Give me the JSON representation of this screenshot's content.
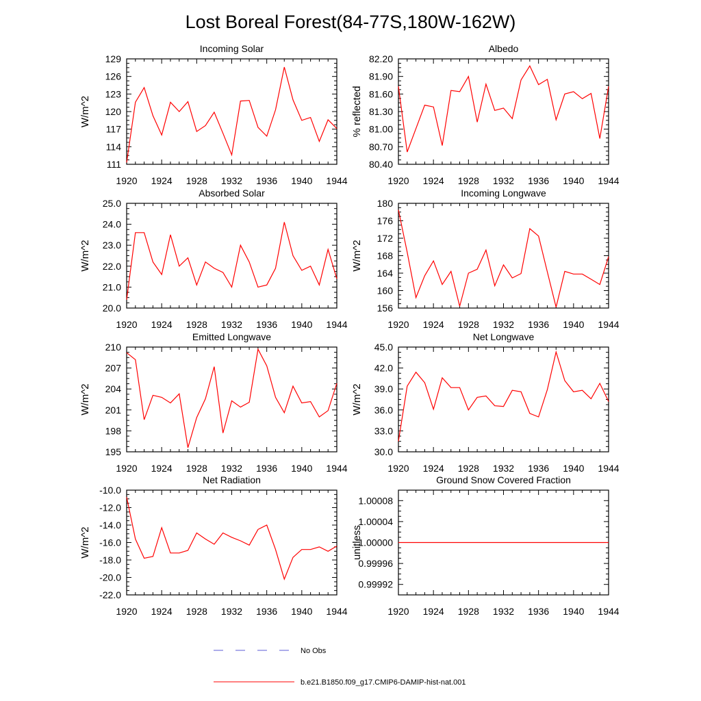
{
  "figure": {
    "title": "Lost Boreal Forest(84-77S,180W-162W)",
    "legend": [
      {
        "label": "No Obs",
        "style": "dashed",
        "color": "#5b5bd6"
      },
      {
        "label": "b.e21.B1850.f09_g17.CMIP6-DAMIP-hist-nat.001",
        "style": "solid",
        "color": "#ff0000"
      }
    ]
  },
  "chart_data": [
    {
      "type": "line",
      "title": "Incoming Solar",
      "xlabel": "",
      "ylabel": "W/m^2",
      "xlim": [
        1920,
        1944
      ],
      "ylim": [
        111,
        129
      ],
      "xticks": [
        "1920",
        "1924",
        "1928",
        "1932",
        "1936",
        "1940",
        "1944"
      ],
      "yticks": [
        "111",
        "114",
        "117",
        "120",
        "123",
        "126",
        "129"
      ],
      "series": [
        {
          "color": "#ff0000",
          "x": [
            1920,
            1921,
            1922,
            1923,
            1924,
            1925,
            1926,
            1927,
            1928,
            1929,
            1930,
            1931,
            1932,
            1933,
            1934,
            1935,
            1936,
            1937,
            1938,
            1939,
            1940,
            1941,
            1942,
            1943,
            1944
          ],
          "values": [
            111.3,
            121.6,
            124.1,
            119.3,
            116.0,
            121.6,
            120.0,
            121.7,
            116.6,
            117.6,
            119.9,
            116.3,
            112.6,
            121.8,
            121.9,
            117.3,
            115.8,
            120.3,
            127.6,
            122.0,
            118.5,
            119.0,
            114.9,
            118.6,
            117.1
          ]
        }
      ]
    },
    {
      "type": "line",
      "title": "Albedo",
      "xlabel": "",
      "ylabel": "% reflected",
      "xlim": [
        1920,
        1944
      ],
      "ylim": [
        80.4,
        82.2
      ],
      "xticks": [
        "1920",
        "1924",
        "1928",
        "1932",
        "1936",
        "1940",
        "1944"
      ],
      "yticks": [
        "80.40",
        "80.70",
        "81.00",
        "81.30",
        "81.60",
        "81.90",
        "82.20"
      ],
      "series": [
        {
          "color": "#ff0000",
          "x": [
            1920,
            1921,
            1922,
            1923,
            1924,
            1925,
            1926,
            1927,
            1928,
            1929,
            1930,
            1931,
            1932,
            1933,
            1934,
            1935,
            1936,
            1937,
            1938,
            1939,
            1940,
            1941,
            1942,
            1943,
            1944
          ],
          "values": [
            81.73,
            80.61,
            81.01,
            81.41,
            81.38,
            80.72,
            81.66,
            81.64,
            81.9,
            81.12,
            81.77,
            81.32,
            81.36,
            81.18,
            81.84,
            82.08,
            81.76,
            81.85,
            81.16,
            81.6,
            81.64,
            81.52,
            81.61,
            80.84,
            81.73
          ]
        }
      ]
    },
    {
      "type": "line",
      "title": "Absorbed Solar",
      "xlabel": "",
      "ylabel": "W/m^2",
      "xlim": [
        1920,
        1944
      ],
      "ylim": [
        20.0,
        25.0
      ],
      "xticks": [
        "1920",
        "1924",
        "1928",
        "1932",
        "1936",
        "1940",
        "1944"
      ],
      "yticks": [
        "20.0",
        "21.0",
        "22.0",
        "23.0",
        "24.0",
        "25.0"
      ],
      "series": [
        {
          "color": "#ff0000",
          "x": [
            1920,
            1921,
            1922,
            1923,
            1924,
            1925,
            1926,
            1927,
            1928,
            1929,
            1930,
            1931,
            1932,
            1933,
            1934,
            1935,
            1936,
            1937,
            1938,
            1939,
            1940,
            1941,
            1942,
            1943,
            1944
          ],
          "values": [
            20.4,
            23.6,
            23.6,
            22.2,
            21.6,
            23.5,
            22.0,
            22.4,
            21.1,
            22.2,
            21.9,
            21.7,
            21.0,
            23.0,
            22.2,
            21.0,
            21.1,
            21.9,
            24.1,
            22.5,
            21.8,
            22.0,
            21.1,
            22.8,
            21.4
          ]
        }
      ]
    },
    {
      "type": "line",
      "title": "Incoming Longwave",
      "xlabel": "",
      "ylabel": "W/m^2",
      "xlim": [
        1920,
        1944
      ],
      "ylim": [
        156,
        180
      ],
      "xticks": [
        "1920",
        "1924",
        "1928",
        "1932",
        "1936",
        "1940",
        "1944"
      ],
      "yticks": [
        "156",
        "160",
        "164",
        "168",
        "172",
        "176",
        "180"
      ],
      "series": [
        {
          "color": "#ff0000",
          "x": [
            1920,
            1921,
            1922,
            1923,
            1924,
            1925,
            1926,
            1927,
            1928,
            1929,
            1930,
            1931,
            1932,
            1933,
            1934,
            1935,
            1936,
            1937,
            1938,
            1939,
            1940,
            1941,
            1942,
            1943,
            1944
          ],
          "values": [
            178.5,
            168.8,
            158.4,
            163.4,
            166.8,
            161.4,
            164.4,
            156.4,
            164.0,
            164.9,
            169.3,
            161.1,
            165.9,
            162.9,
            163.9,
            174.2,
            172.5,
            164.3,
            156.2,
            164.4,
            163.8,
            163.8,
            162.6,
            161.4,
            167.8
          ]
        }
      ]
    },
    {
      "type": "line",
      "title": "Emitted Longwave",
      "xlabel": "",
      "ylabel": "W/m^2",
      "xlim": [
        1920,
        1944
      ],
      "ylim": [
        195,
        210
      ],
      "xticks": [
        "1920",
        "1924",
        "1928",
        "1932",
        "1936",
        "1940",
        "1944"
      ],
      "yticks": [
        "195",
        "198",
        "201",
        "204",
        "207",
        "210"
      ],
      "series": [
        {
          "color": "#ff0000",
          "x": [
            1920,
            1921,
            1922,
            1923,
            1924,
            1925,
            1926,
            1927,
            1928,
            1929,
            1930,
            1931,
            1932,
            1933,
            1934,
            1935,
            1936,
            1937,
            1938,
            1939,
            1940,
            1941,
            1942,
            1943,
            1944
          ],
          "values": [
            209.2,
            208.2,
            199.6,
            203.1,
            202.8,
            202.0,
            203.3,
            195.6,
            199.9,
            202.6,
            207.2,
            197.7,
            202.3,
            201.4,
            202.1,
            209.7,
            207.3,
            202.8,
            200.6,
            204.4,
            202.0,
            202.2,
            200.0,
            200.9,
            204.8
          ]
        }
      ]
    },
    {
      "type": "line",
      "title": "Net Longwave",
      "xlabel": "",
      "ylabel": "W/m^2",
      "xlim": [
        1920,
        1944
      ],
      "ylim": [
        30.0,
        45.0
      ],
      "xticks": [
        "1920",
        "1924",
        "1928",
        "1932",
        "1936",
        "1940",
        "1944"
      ],
      "yticks": [
        "30.0",
        "33.0",
        "36.0",
        "39.0",
        "42.0",
        "45.0"
      ],
      "series": [
        {
          "color": "#ff0000",
          "x": [
            1920,
            1921,
            1922,
            1923,
            1924,
            1925,
            1926,
            1927,
            1928,
            1929,
            1930,
            1931,
            1932,
            1933,
            1934,
            1935,
            1936,
            1937,
            1938,
            1939,
            1940,
            1941,
            1942,
            1943,
            1944
          ],
          "values": [
            31.5,
            39.4,
            41.4,
            39.9,
            36.1,
            40.6,
            39.2,
            39.2,
            36.0,
            37.8,
            38.0,
            36.6,
            36.5,
            38.8,
            38.6,
            35.5,
            35.0,
            38.9,
            44.3,
            40.2,
            38.6,
            38.8,
            37.6,
            39.8,
            37.2
          ]
        }
      ]
    },
    {
      "type": "line",
      "title": "Net Radiation",
      "xlabel": "",
      "ylabel": "W/m^2",
      "xlim": [
        1920,
        1944
      ],
      "ylim": [
        -22.0,
        -10.0
      ],
      "xticks": [
        "1920",
        "1924",
        "1928",
        "1932",
        "1936",
        "1940",
        "1944"
      ],
      "yticks": [
        "-22.0",
        "-20.0",
        "-18.0",
        "-16.0",
        "-14.0",
        "-12.0",
        "-10.0"
      ],
      "series": [
        {
          "color": "#ff0000",
          "x": [
            1920,
            1921,
            1922,
            1923,
            1924,
            1925,
            1926,
            1927,
            1928,
            1929,
            1930,
            1931,
            1932,
            1933,
            1934,
            1935,
            1936,
            1937,
            1938,
            1939,
            1940,
            1941,
            1942,
            1943,
            1944
          ],
          "values": [
            -10.8,
            -15.6,
            -17.8,
            -17.6,
            -14.3,
            -17.2,
            -17.2,
            -16.9,
            -14.9,
            -15.6,
            -16.2,
            -14.9,
            -15.4,
            -15.8,
            -16.3,
            -14.5,
            -14.0,
            -16.8,
            -20.2,
            -17.7,
            -16.8,
            -16.8,
            -16.5,
            -17.0,
            -16.4
          ]
        }
      ]
    },
    {
      "type": "line",
      "title": "Ground Snow Covered Fraction",
      "xlabel": "",
      "ylabel": "unitless",
      "xlim": [
        1920,
        1944
      ],
      "ylim": [
        0.9999,
        1.0001
      ],
      "xticks": [
        "1920",
        "1924",
        "1928",
        "1932",
        "1936",
        "1940",
        "1944"
      ],
      "yticks": [
        "0.99992",
        "0.99996",
        "1.00000",
        "1.00004",
        "1.00008"
      ],
      "ytick_values": [
        0.99992,
        0.99996,
        1.0,
        1.00004,
        1.00008
      ],
      "series": [
        {
          "color": "#ff0000",
          "x": [
            1920,
            1944
          ],
          "values": [
            1.0,
            1.0
          ]
        }
      ]
    }
  ]
}
